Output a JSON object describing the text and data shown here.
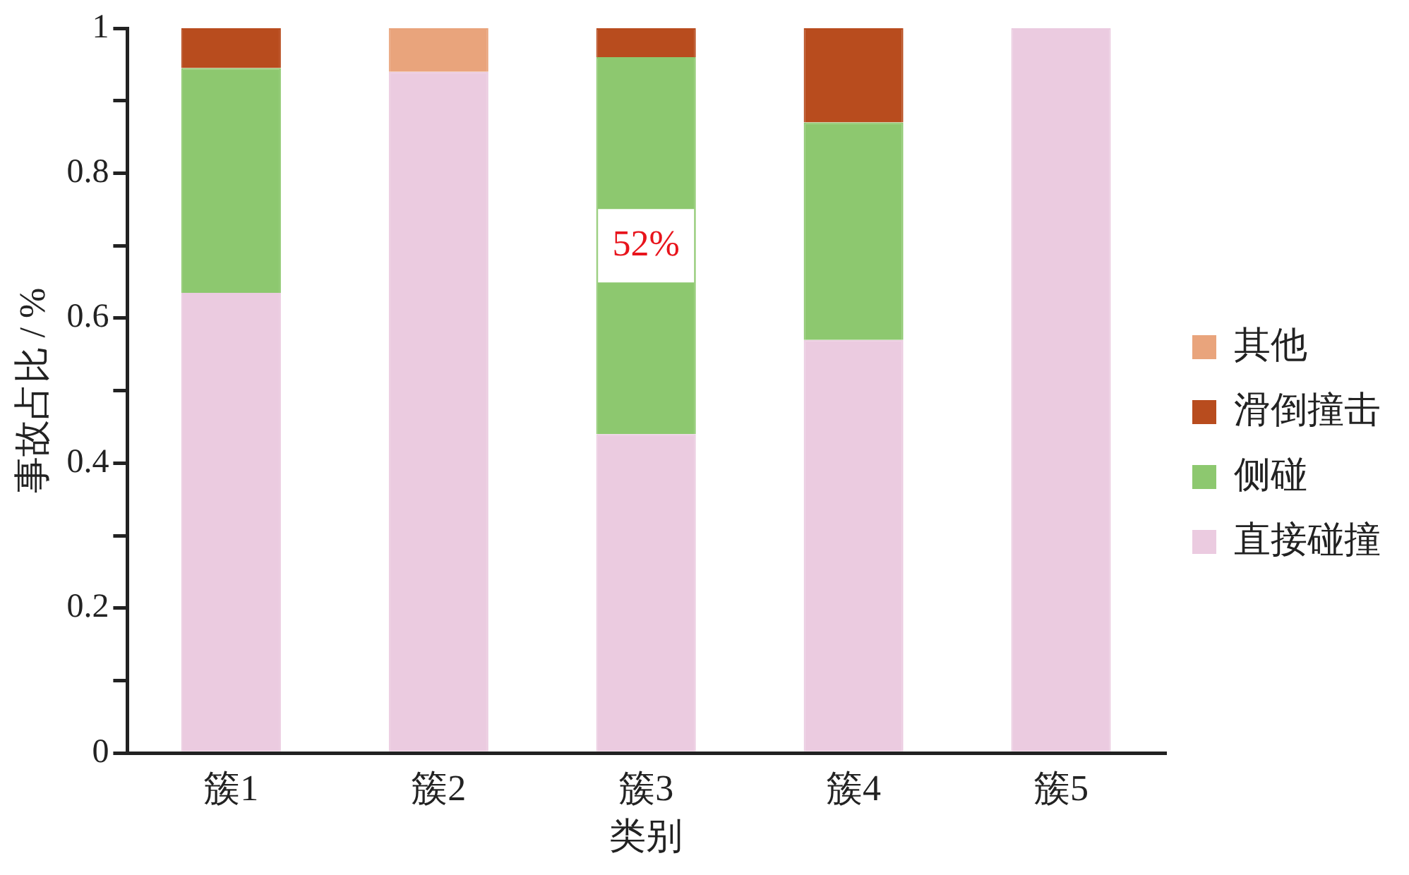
{
  "chart_data": {
    "type": "bar",
    "stacked": true,
    "xlabel": "类别",
    "ylabel": "事故占比 / %",
    "categories": [
      "簇1",
      "簇2",
      "簇3",
      "簇4",
      "簇5"
    ],
    "series": [
      {
        "name": "直接碰撞",
        "color": "#ebcbe0",
        "values": [
          0.635,
          0.94,
          0.44,
          0.57,
          1
        ]
      },
      {
        "name": "侧碰",
        "color": "#8dc86f",
        "values": [
          0.31,
          null,
          0.52,
          0.3,
          null
        ],
        "value_labels": [
          null,
          null,
          "52%",
          null,
          null
        ]
      },
      {
        "name": "滑倒撞击",
        "color": "#b84c1e",
        "values": [
          0.055,
          null,
          0.04,
          0.13,
          null
        ]
      },
      {
        "name": "其他",
        "color": "#e9a47c",
        "values": [
          null,
          0.06,
          null,
          null,
          null
        ]
      }
    ],
    "ylim": [
      0,
      1
    ],
    "yticks": [
      0,
      {
        "value": 0.1,
        "label": null
      },
      0.2,
      {
        "value": 0.3,
        "label": null
      },
      0.4,
      {
        "value": 0.5,
        "label": null
      },
      0.6,
      {
        "value": 0.7,
        "label": null
      },
      0.8,
      {
        "value": 0.9,
        "label": null
      },
      1
    ],
    "legend": "right",
    "grid": false
  }
}
